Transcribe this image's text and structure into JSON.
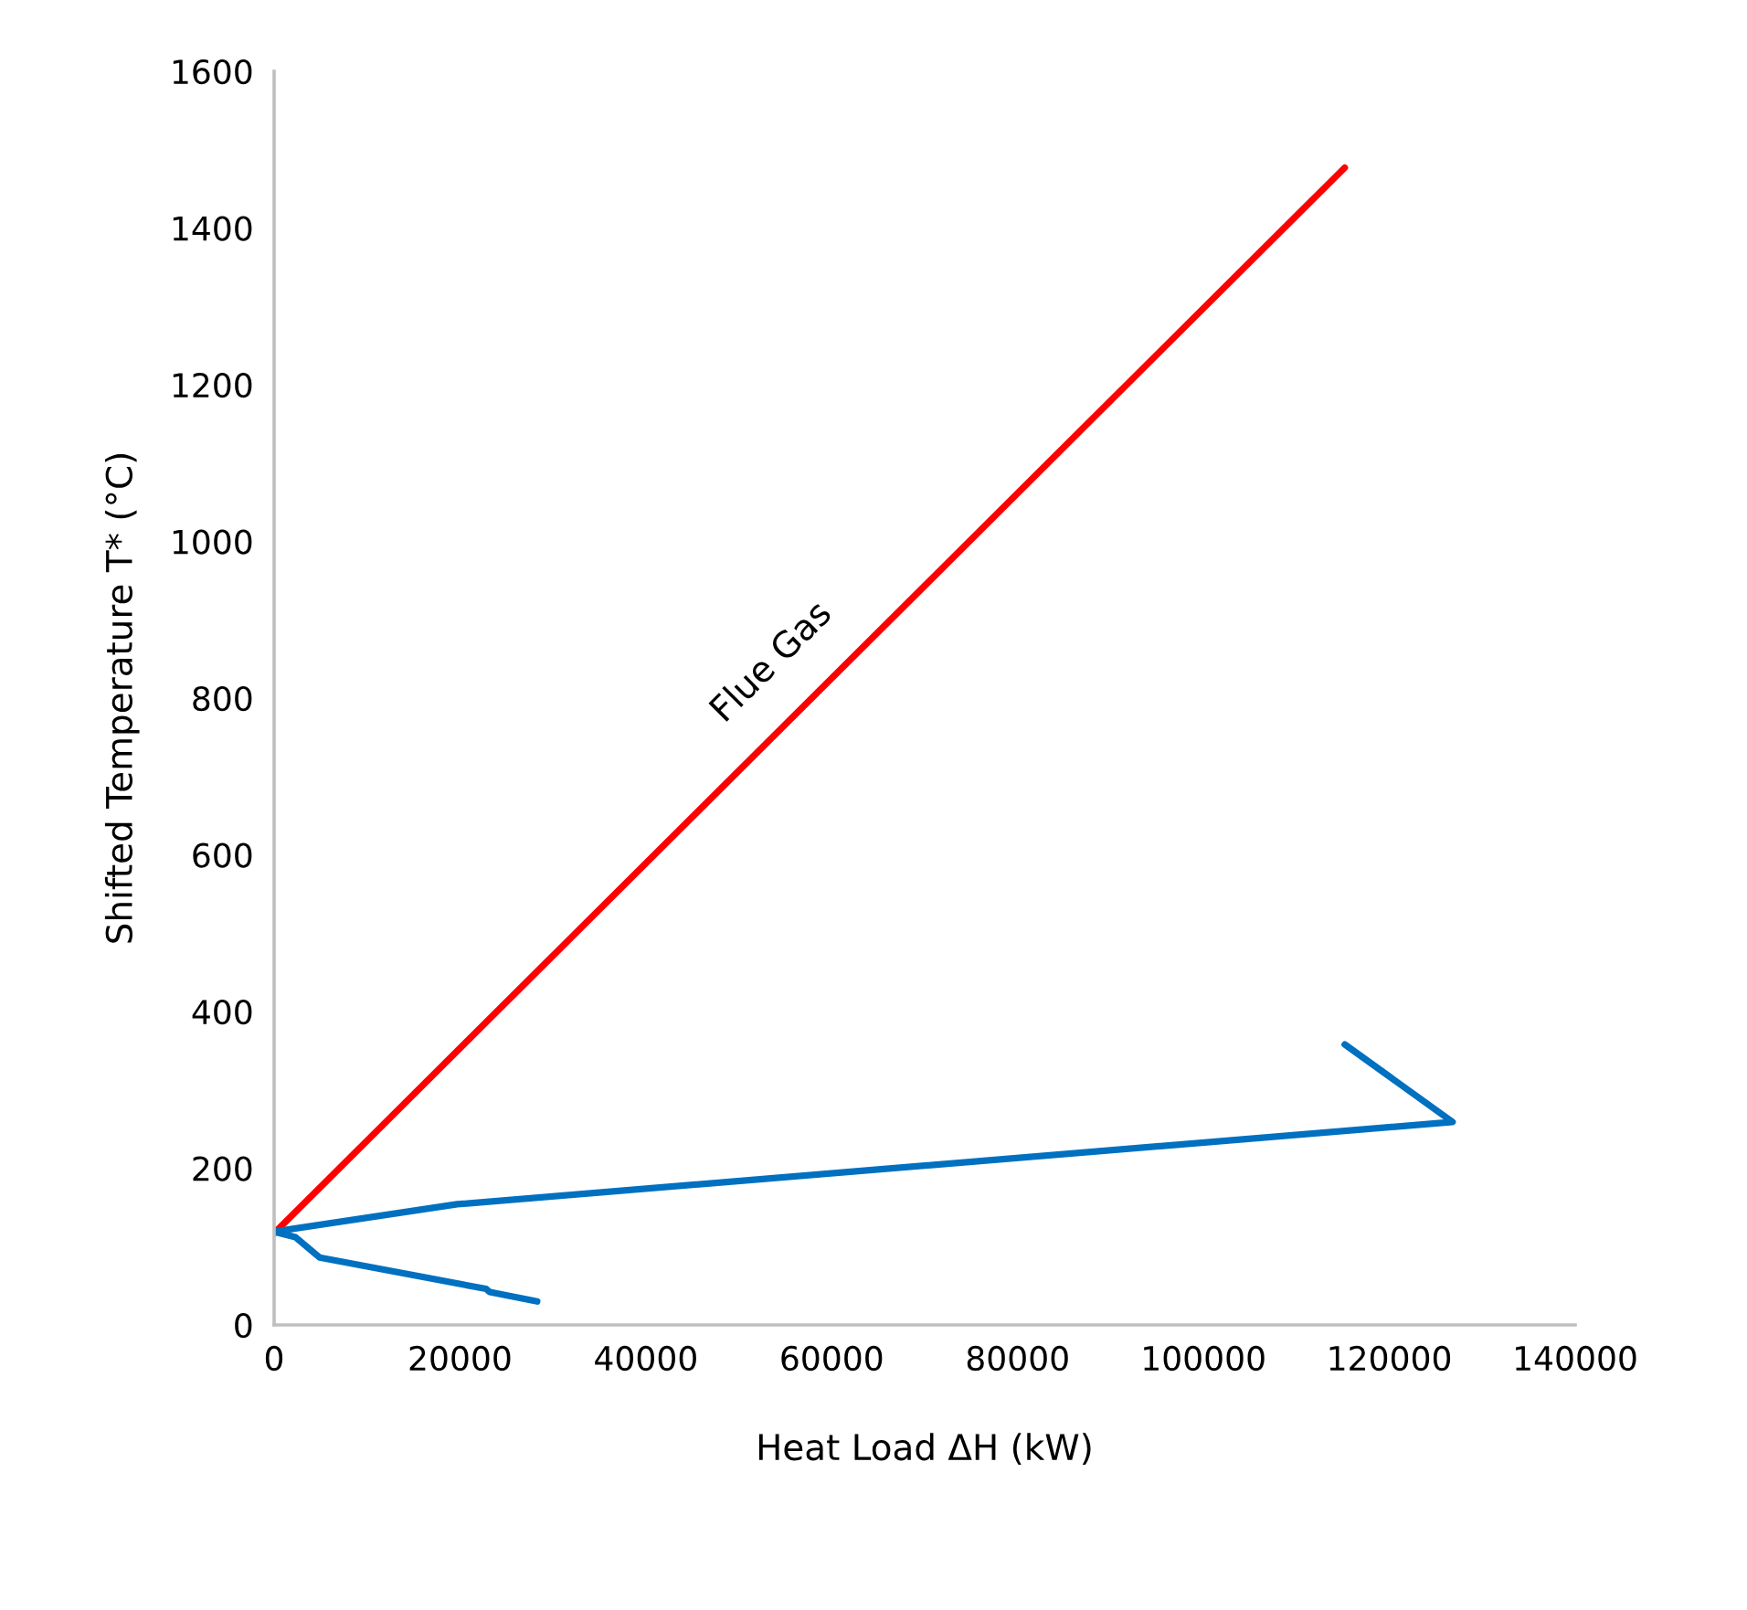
{
  "chart_data": {
    "type": "line",
    "xlabel": "Heat Load ΔH (kW)",
    "ylabel": "Shifted Temperature T* (°C)",
    "xlim": [
      0,
      140000
    ],
    "xticks": [
      0,
      20000,
      40000,
      60000,
      80000,
      100000,
      120000,
      140000
    ],
    "ylim": [
      0,
      1600
    ],
    "yticks": [
      0,
      200,
      400,
      600,
      800,
      1000,
      1200,
      1400,
      1600
    ],
    "grid": false,
    "marker": "none",
    "line_style": "solid",
    "series": [
      {
        "name": "Flue Gas",
        "color": "#ff0000",
        "x": [
          0,
          115200
        ],
        "values": [
          117,
          1477
        ]
      },
      {
        "color": "#0070c0",
        "x": [
          115200,
          126800,
          19700,
          0,
          2300,
          4900,
          22800,
          23200,
          28300
        ],
        "values": [
          358,
          259,
          154,
          119,
          112,
          86,
          46,
          42,
          30
        ]
      }
    ]
  }
}
